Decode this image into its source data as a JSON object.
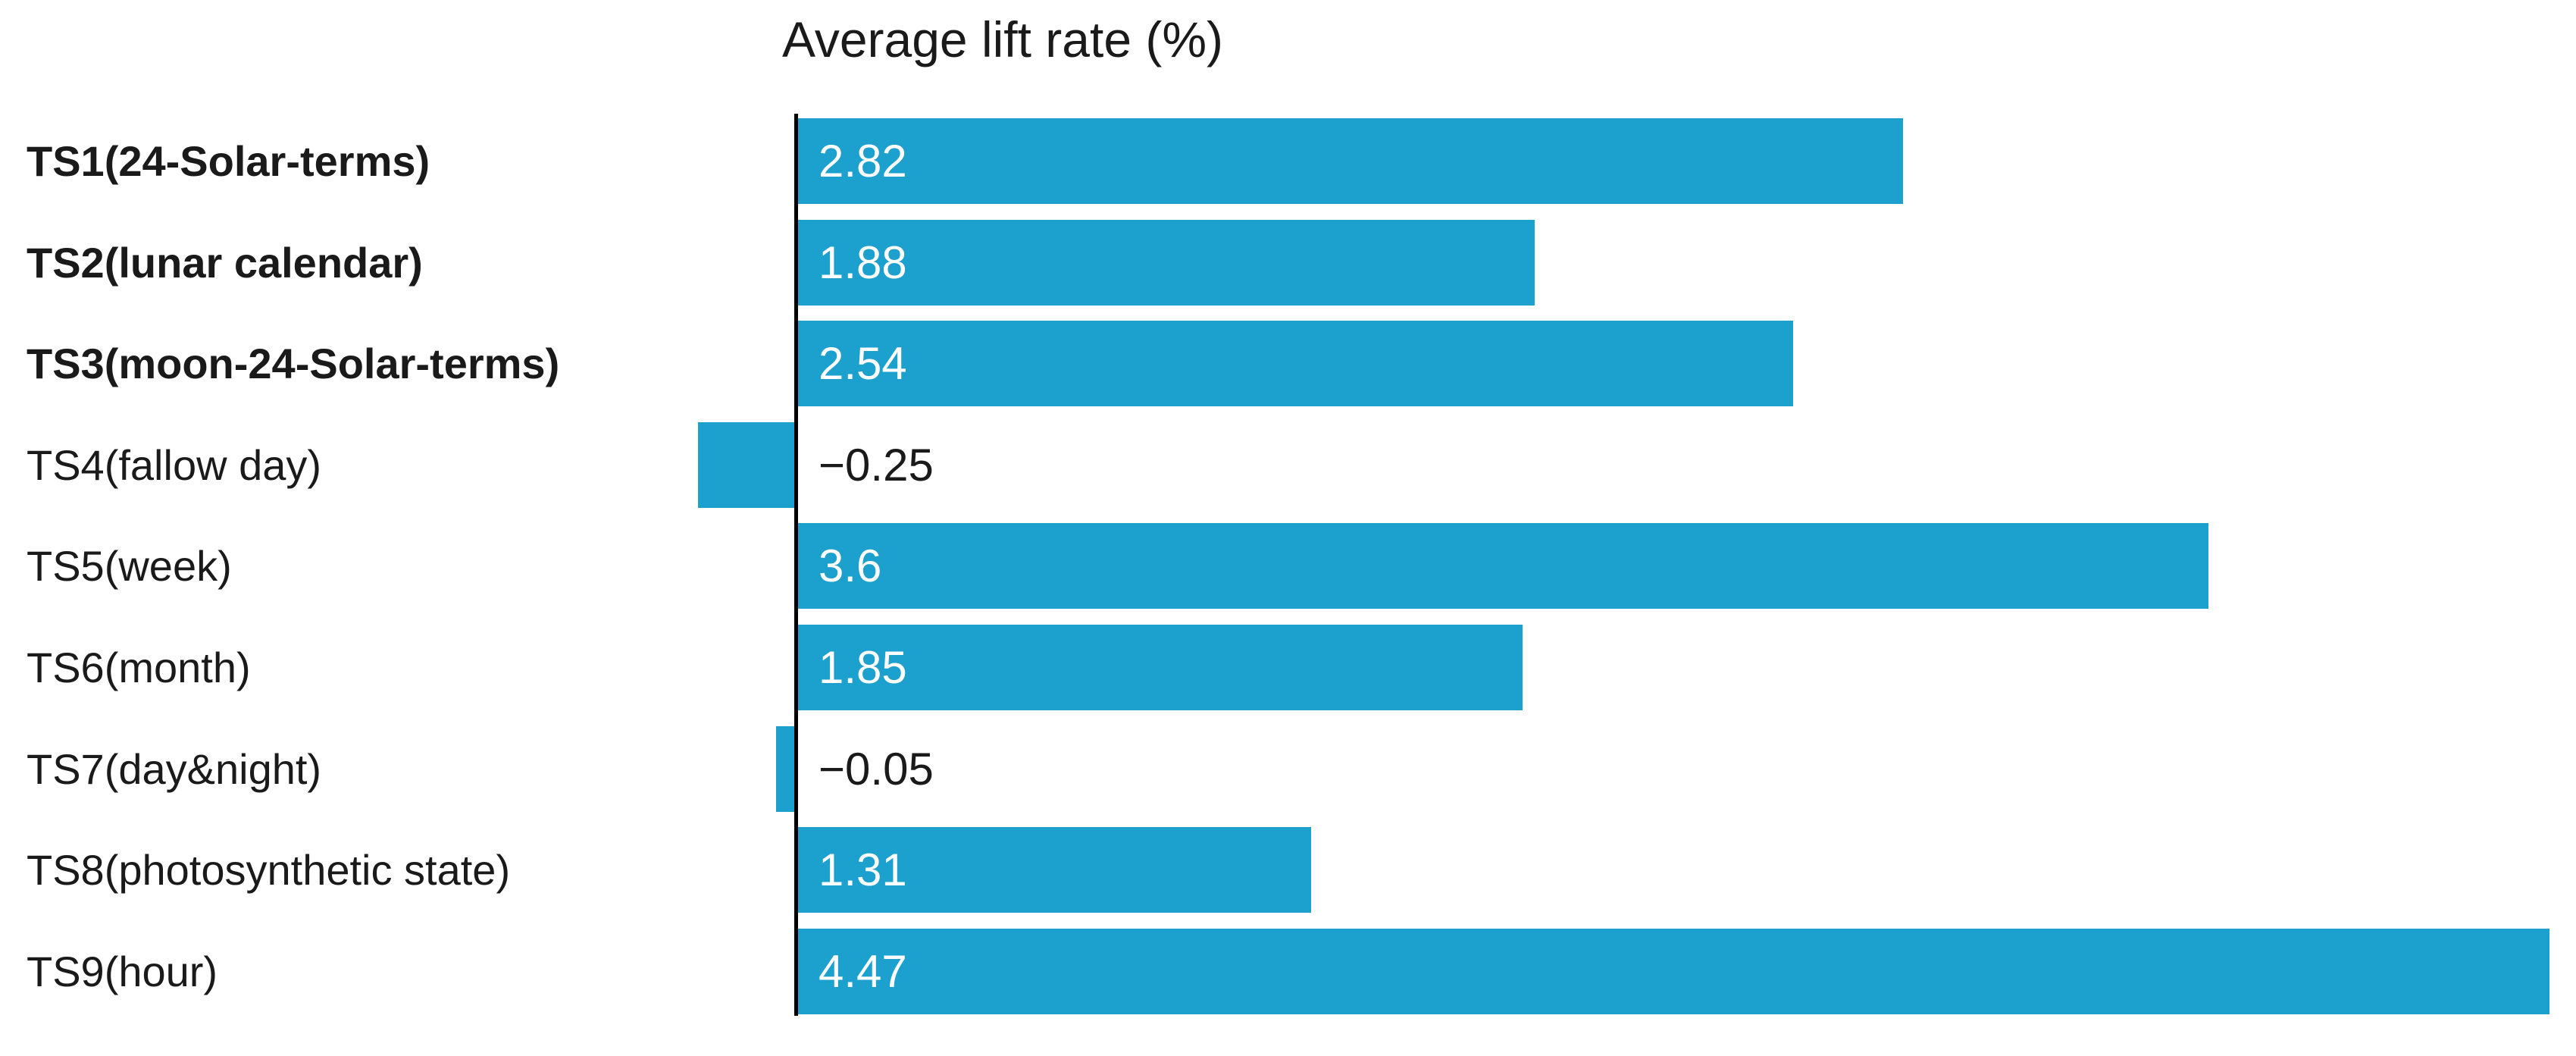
{
  "chart_data": {
    "type": "bar",
    "orientation": "horizontal",
    "title": "Average lift rate (%)",
    "categories": [
      "TS1(24-Solar-terms)",
      "TS2(lunar calendar)",
      "TS3(moon-24-Solar-terms)",
      "TS4(fallow day)",
      "TS5(week)",
      "TS6(month)",
      "TS7(day&night)",
      "TS8(photosynthetic state)",
      "TS9(hour)"
    ],
    "values": [
      2.82,
      1.88,
      2.54,
      -0.25,
      3.6,
      1.85,
      -0.05,
      1.31,
      4.47
    ],
    "value_labels": [
      "2.82",
      "1.88",
      "2.54",
      "−0.25",
      "3.6",
      "1.85",
      "−0.05",
      "1.31",
      "4.47"
    ],
    "bold_categories": [
      true,
      true,
      true,
      false,
      false,
      false,
      false,
      false,
      false
    ],
    "xlabel": "",
    "ylabel": "",
    "xlim": [
      -0.3,
      4.55
    ],
    "grid": false,
    "legend": null,
    "bar_color": "#1CA0CE",
    "positive_value_color": "#ffffff",
    "negative_value_color": "#1a1a1a",
    "axis_color": "#000000",
    "background_color": "#ffffff"
  }
}
